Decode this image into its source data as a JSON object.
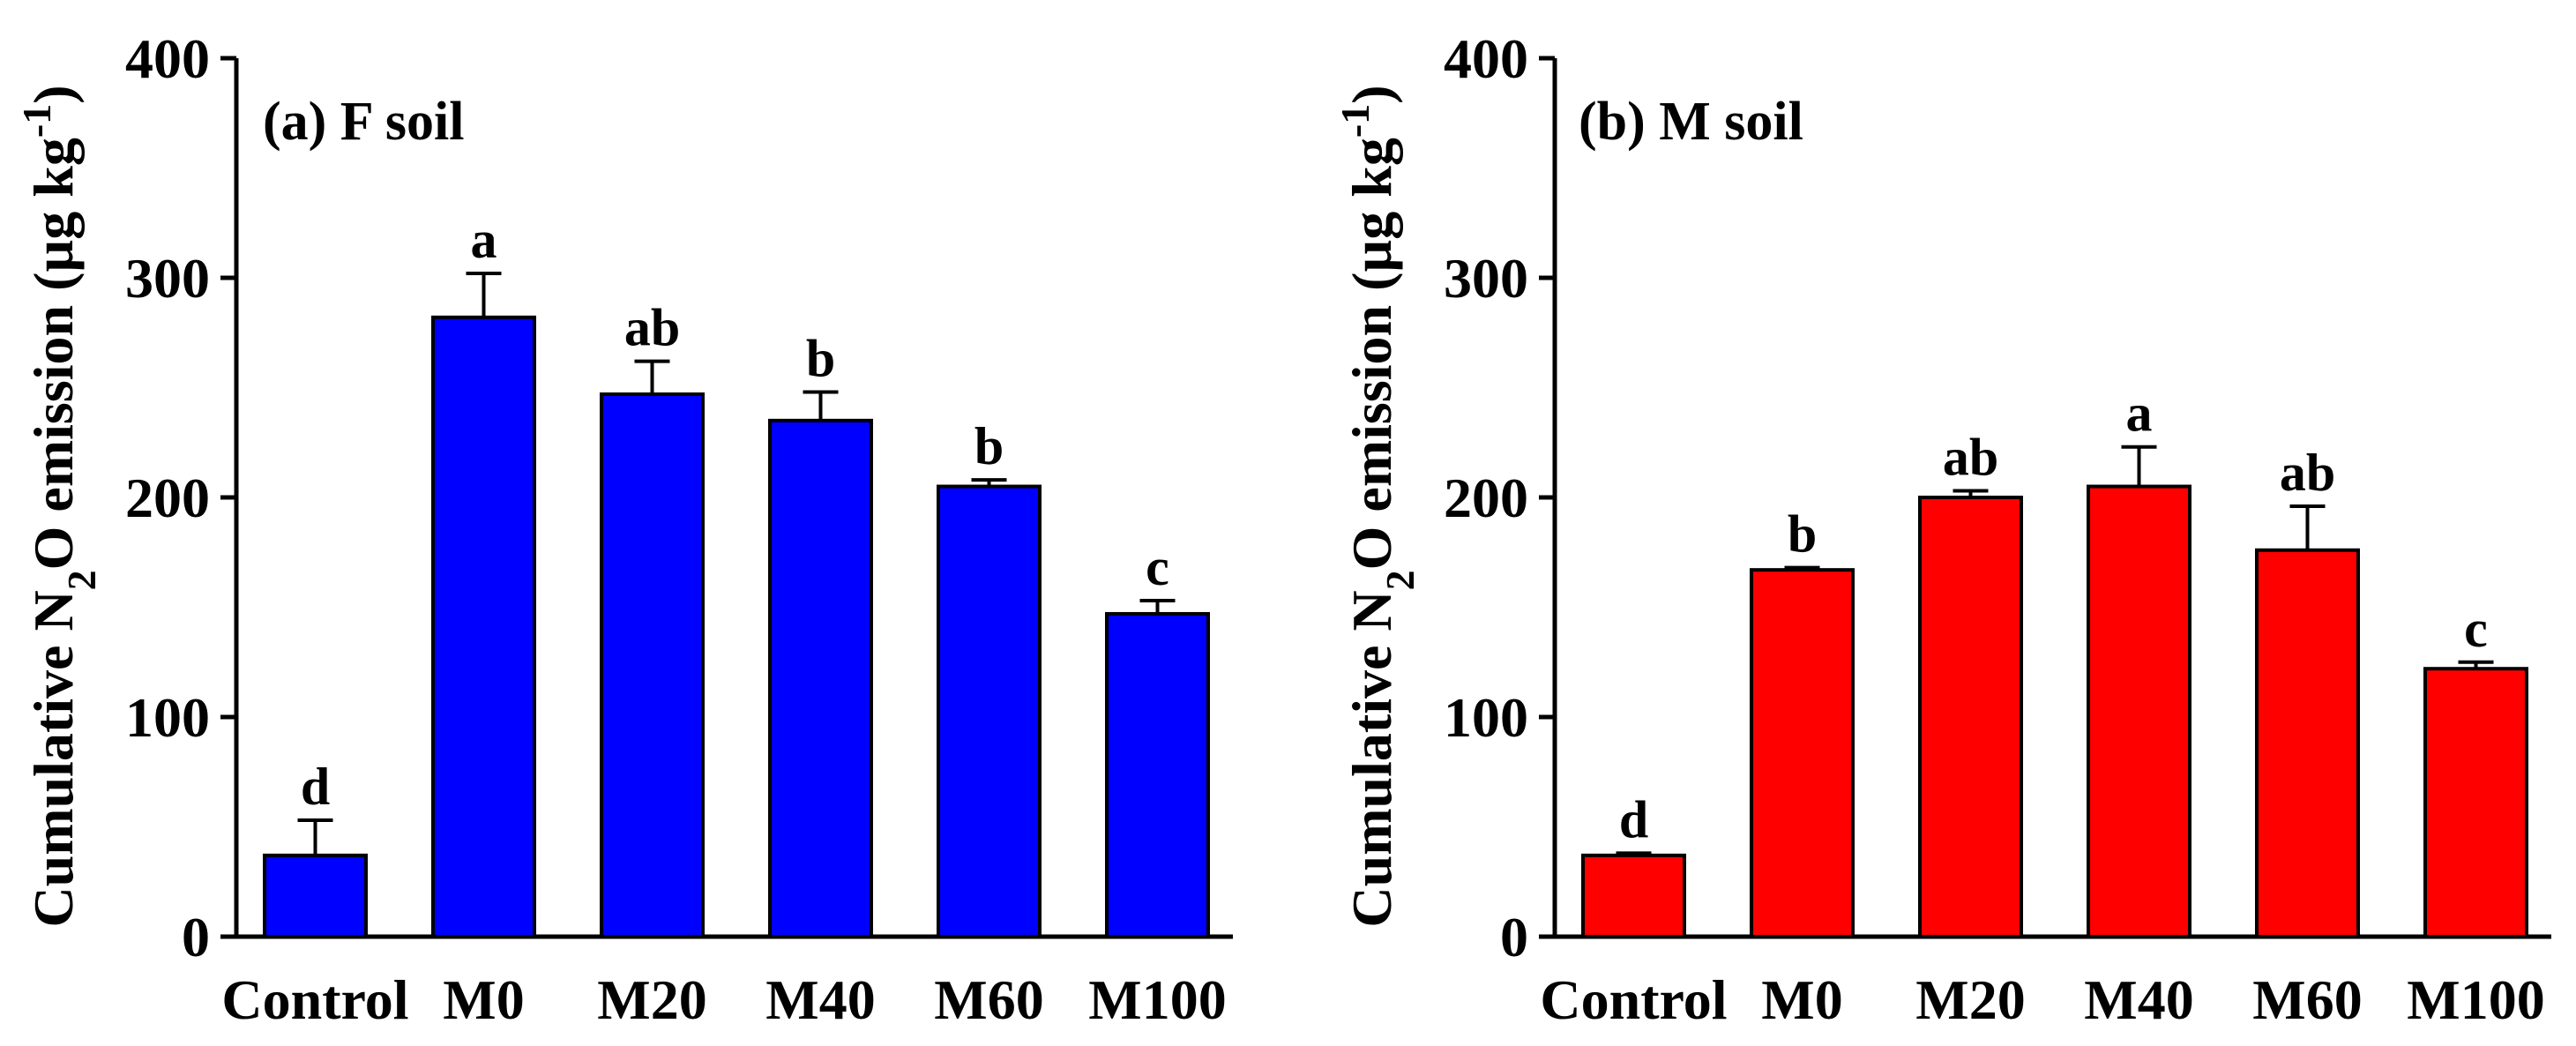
{
  "chart_data": [
    {
      "type": "bar",
      "title": "(a) F soil",
      "ylabel_prefix": "Cumulative N",
      "ylabel_sub": "2",
      "ylabel_mid": "O emission (µg kg",
      "ylabel_sup": "-1",
      "ylabel_suffix": ")",
      "xlabel": "",
      "ylim": [
        0,
        400
      ],
      "yticks": [
        0,
        100,
        200,
        300,
        400
      ],
      "categories": [
        "Control",
        "M0",
        "M20",
        "M40",
        "M60",
        "M100"
      ],
      "values": [
        37,
        282,
        247,
        235,
        205,
        147
      ],
      "errors": [
        16,
        20,
        15,
        13,
        3,
        6
      ],
      "letters": [
        "d",
        "a",
        "ab",
        "b",
        "b",
        "c"
      ],
      "bar_color": "#0000ff"
    },
    {
      "type": "bar",
      "title": "(b) M soil",
      "ylabel_prefix": "Cumulative N",
      "ylabel_sub": "2",
      "ylabel_mid": "O emission (µg kg",
      "ylabel_sup": "-1",
      "ylabel_suffix": ")",
      "xlabel": "",
      "ylim": [
        0,
        400
      ],
      "yticks": [
        0,
        100,
        200,
        300,
        400
      ],
      "categories": [
        "Control",
        "M0",
        "M20",
        "M40",
        "M60",
        "M100"
      ],
      "values": [
        37,
        167,
        200,
        205,
        176,
        122
      ],
      "errors": [
        1,
        1,
        3,
        18,
        20,
        3
      ],
      "letters": [
        "d",
        "b",
        "ab",
        "a",
        "ab",
        "c"
      ],
      "bar_color": "#ff0000"
    }
  ]
}
